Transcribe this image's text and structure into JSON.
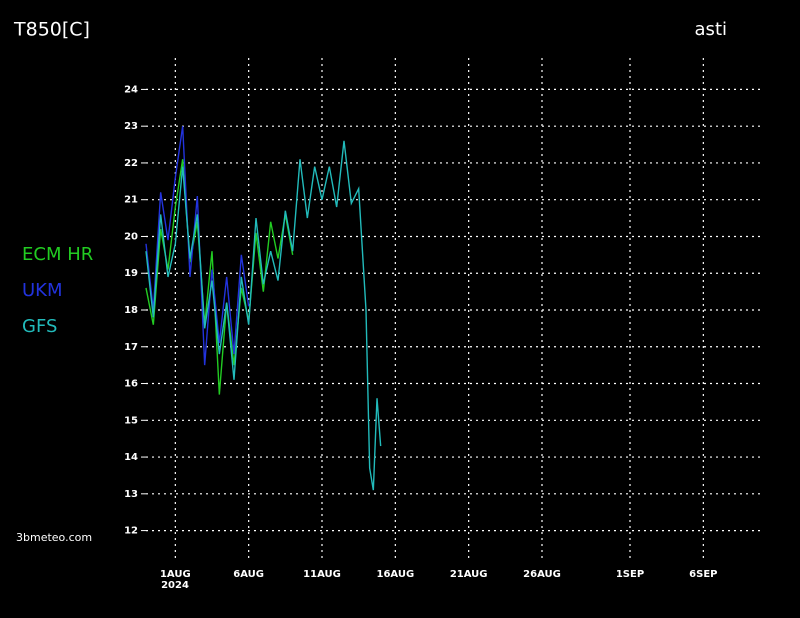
{
  "chart_data": {
    "type": "line",
    "title": "T850[C]",
    "location": "asti",
    "credit": "3bmeteo.com",
    "year": "2024",
    "xlim": [
      -1,
      41
    ],
    "ylim": [
      11.2,
      24.8
    ],
    "xticks": [
      {
        "value": 1,
        "label": "1AUG"
      },
      {
        "value": 6,
        "label": "6AUG"
      },
      {
        "value": 11,
        "label": "11AUG"
      },
      {
        "value": 16,
        "label": "16AUG"
      },
      {
        "value": 21,
        "label": "21AUG"
      },
      {
        "value": 26,
        "label": "26AUG"
      },
      {
        "value": 32,
        "label": "1SEP"
      },
      {
        "value": 37,
        "label": "6SEP"
      }
    ],
    "yticks": [
      12,
      13,
      14,
      15,
      16,
      17,
      18,
      19,
      20,
      21,
      22,
      23,
      24
    ],
    "grid": true,
    "series": [
      {
        "name": "ECM HR",
        "color": "#22cc22",
        "x": [
          -1,
          -0.5,
          0,
          0.5,
          1,
          1.5,
          2,
          2.5,
          3,
          3.5,
          4,
          4.5,
          5,
          5.5,
          6,
          6.5,
          7,
          7.5,
          8,
          8.5,
          9
        ],
        "values": [
          18.6,
          17.6,
          20.2,
          19.1,
          20.8,
          22.1,
          19.3,
          20.4,
          17.6,
          19.6,
          15.7,
          18.2,
          16.5,
          18.6,
          17.7,
          20.1,
          18.5,
          20.4,
          19.4,
          20.6,
          19.5
        ]
      },
      {
        "name": "UKM",
        "color": "#2233dd",
        "x": [
          -1,
          -0.5,
          0,
          0.5,
          1,
          1.5,
          2,
          2.5,
          3,
          3.5,
          4,
          4.5,
          5,
          5.5,
          6
        ],
        "values": [
          19.8,
          18.0,
          21.2,
          19.9,
          21.6,
          23.0,
          18.9,
          21.1,
          16.5,
          19.1,
          17.1,
          18.9,
          16.8,
          19.5,
          18.1
        ]
      },
      {
        "name": "GFS",
        "color": "#22bbbb",
        "x": [
          -1,
          -0.5,
          0,
          0.5,
          1,
          1.5,
          2,
          2.5,
          3,
          3.5,
          4,
          4.5,
          5,
          5.5,
          6,
          6.5,
          7,
          7.5,
          8,
          8.5,
          9,
          9.5,
          10,
          10.5,
          11,
          11.5,
          12,
          12.5,
          13,
          13.5,
          14,
          14.25,
          14.5,
          14.75,
          15
        ],
        "values": [
          19.6,
          17.8,
          20.6,
          18.9,
          19.8,
          21.9,
          19.4,
          20.6,
          17.5,
          18.8,
          16.8,
          18.2,
          16.1,
          18.9,
          17.6,
          20.5,
          18.7,
          19.6,
          18.8,
          20.7,
          19.6,
          22.1,
          20.5,
          21.9,
          21.0,
          21.9,
          20.8,
          22.6,
          20.9,
          21.3,
          18.0,
          13.7,
          13.1,
          15.6,
          14.3
        ]
      }
    ]
  }
}
